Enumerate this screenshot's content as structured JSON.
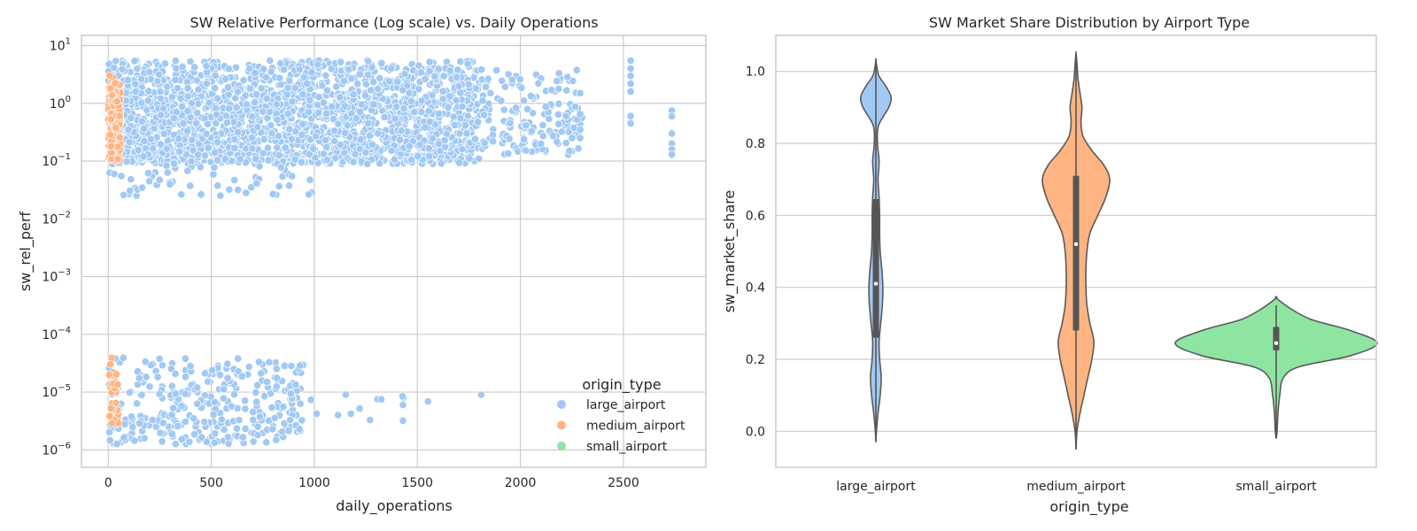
{
  "colors": {
    "large_airport": "#a1c9f4",
    "medium_airport": "#ffb482",
    "small_airport": "#8de5a1",
    "grid": "#cccccc",
    "text": "#262626",
    "violin_edge": "#5a5a5a",
    "box": "#555555"
  },
  "chart_data": [
    {
      "type": "scatter",
      "title": "SW Relative Performance (Log scale) vs. Daily Operations",
      "xlabel": "daily_operations",
      "ylabel": "sw_rel_perf",
      "xlim": [
        -130,
        2900
      ],
      "ylim": [
        5e-07,
        15
      ],
      "yscale": "log",
      "xticks": [
        0,
        500,
        1000,
        1500,
        2000,
        2500
      ],
      "yticks": [
        {
          "value": 1e-06,
          "base": "10",
          "exp": "−6"
        },
        {
          "value": 1e-05,
          "base": "10",
          "exp": "−5"
        },
        {
          "value": 0.0001,
          "base": "10",
          "exp": "−4"
        },
        {
          "value": 0.001,
          "base": "10",
          "exp": "−3"
        },
        {
          "value": 0.01,
          "base": "10",
          "exp": "−2"
        },
        {
          "value": 0.1,
          "base": "10",
          "exp": "−1"
        },
        {
          "value": 1,
          "base": "10",
          "exp": "0"
        },
        {
          "value": 10,
          "base": "10",
          "exp": "1"
        }
      ],
      "grid": true,
      "legend": {
        "title": "origin_type",
        "placement": "lower-right",
        "entries": [
          "large_airport",
          "medium_airport",
          "small_airport"
        ]
      },
      "series": [
        {
          "name": "large_airport",
          "clusters": [
            {
              "x_range": [
                0,
                1800
              ],
              "y_log_range": [
                -1.05,
                0.75
              ],
              "count": 2200
            },
            {
              "x_range": [
                1800,
                2300
              ],
              "y_log_range": [
                -0.9,
                0.6
              ],
              "count": 160
            },
            {
              "x_range": [
                0,
                1000
              ],
              "y_log_range": [
                -1.6,
                -1.0
              ],
              "count": 60
            },
            {
              "x_range": [
                0,
                950
              ],
              "y_log_range": [
                -5.9,
                -4.4
              ],
              "count": 330
            },
            {
              "x_range": [
                950,
                1820
              ],
              "y_log_range": [
                -5.5,
                -4.9
              ],
              "count": 9
            }
          ],
          "points": [
            {
              "x": 2535,
              "y": 5.5
            },
            {
              "x": 2535,
              "y": 4.0
            },
            {
              "x": 2535,
              "y": 3.0
            },
            {
              "x": 2535,
              "y": 2.2
            },
            {
              "x": 2535,
              "y": 1.6
            },
            {
              "x": 2535,
              "y": 0.6
            },
            {
              "x": 2535,
              "y": 0.45
            },
            {
              "x": 2735,
              "y": 0.75
            },
            {
              "x": 2735,
              "y": 0.6
            },
            {
              "x": 2735,
              "y": 0.3
            },
            {
              "x": 2735,
              "y": 0.2
            },
            {
              "x": 2735,
              "y": 0.16
            },
            {
              "x": 2735,
              "y": 0.13
            },
            {
              "x": 2290,
              "y": 1.5
            },
            {
              "x": 2290,
              "y": 0.65
            },
            {
              "x": 2290,
              "y": 0.35
            },
            {
              "x": 2290,
              "y": 0.25
            },
            {
              "x": 1810,
              "y": 9e-06
            },
            {
              "x": 1430,
              "y": 6e-06
            },
            {
              "x": 1430,
              "y": 3.2e-06
            },
            {
              "x": 1325,
              "y": 7.5e-06
            },
            {
              "x": 1220,
              "y": 5.2e-06
            },
            {
              "x": 1115,
              "y": 4e-06
            }
          ]
        },
        {
          "name": "medium_airport",
          "clusters": [
            {
              "x_range": [
                0,
                60
              ],
              "y_log_range": [
                -1.0,
                0.5
              ],
              "count": 150
            },
            {
              "x_range": [
                0,
                50
              ],
              "y_log_range": [
                -5.55,
                -4.35
              ],
              "count": 30
            }
          ],
          "points": []
        },
        {
          "name": "small_airport",
          "clusters": [],
          "points": []
        }
      ]
    },
    {
      "type": "violin",
      "title": "SW Market Share Distribution by Airport Type",
      "xlabel": "origin_type",
      "ylabel": "sw_market_share",
      "categories": [
        "large_airport",
        "medium_airport",
        "small_airport"
      ],
      "ylim": [
        -0.1,
        1.1
      ],
      "yticks": [
        0.0,
        0.2,
        0.4,
        0.6,
        0.8,
        1.0
      ],
      "grid": true,
      "violins": [
        {
          "category": "large_airport",
          "density": [
            [
              -0.03,
              0
            ],
            [
              0.0,
              0.5
            ],
            [
              0.05,
              2
            ],
            [
              0.1,
              4
            ],
            [
              0.15,
              5
            ],
            [
              0.2,
              3.5
            ],
            [
              0.25,
              3
            ],
            [
              0.3,
              4.5
            ],
            [
              0.35,
              6
            ],
            [
              0.4,
              6.5
            ],
            [
              0.45,
              5.5
            ],
            [
              0.5,
              4
            ],
            [
              0.55,
              3.5
            ],
            [
              0.6,
              3.5
            ],
            [
              0.65,
              3
            ],
            [
              0.7,
              2
            ],
            [
              0.75,
              3
            ],
            [
              0.8,
              1.5
            ],
            [
              0.85,
              2.5
            ],
            [
              0.9,
              12
            ],
            [
              0.93,
              14
            ],
            [
              0.96,
              9
            ],
            [
              0.99,
              2.5
            ],
            [
              1.03,
              0
            ]
          ],
          "max_half_width": 17,
          "q1": 0.26,
          "median": 0.41,
          "q3": 0.645,
          "whisker_low": -0.03,
          "whisker_high": 1.03
        },
        {
          "category": "medium_airport",
          "density": [
            [
              -0.05,
              0
            ],
            [
              0.0,
              0.5
            ],
            [
              0.05,
              2
            ],
            [
              0.1,
              4
            ],
            [
              0.15,
              6
            ],
            [
              0.2,
              8
            ],
            [
              0.25,
              9
            ],
            [
              0.3,
              7
            ],
            [
              0.35,
              5.5
            ],
            [
              0.4,
              5
            ],
            [
              0.45,
              5
            ],
            [
              0.5,
              5.5
            ],
            [
              0.55,
              7
            ],
            [
              0.6,
              11
            ],
            [
              0.65,
              15
            ],
            [
              0.7,
              17
            ],
            [
              0.74,
              14
            ],
            [
              0.78,
              8
            ],
            [
              0.82,
              3.5
            ],
            [
              0.86,
              2.5
            ],
            [
              0.9,
              3
            ],
            [
              0.94,
              2
            ],
            [
              0.98,
              1
            ],
            [
              1.02,
              0.5
            ],
            [
              1.05,
              0
            ]
          ],
          "max_half_width": 38,
          "q1": 0.28,
          "median": 0.52,
          "q3": 0.71,
          "whisker_low": -0.05,
          "whisker_high": 1.05
        },
        {
          "category": "small_airport",
          "density": [
            [
              -0.02,
              0
            ],
            [
              0.0,
              0.3
            ],
            [
              0.05,
              0.6
            ],
            [
              0.1,
              1.2
            ],
            [
              0.15,
              2.5
            ],
            [
              0.18,
              8
            ],
            [
              0.21,
              25
            ],
            [
              0.245,
              34
            ],
            [
              0.28,
              25
            ],
            [
              0.31,
              12
            ],
            [
              0.34,
              5
            ],
            [
              0.37,
              0
            ]
          ],
          "max_half_width": 114,
          "q1": 0.225,
          "median": 0.245,
          "q3": 0.29,
          "whisker_low": -0.02,
          "whisker_high": 0.35
        }
      ]
    }
  ]
}
